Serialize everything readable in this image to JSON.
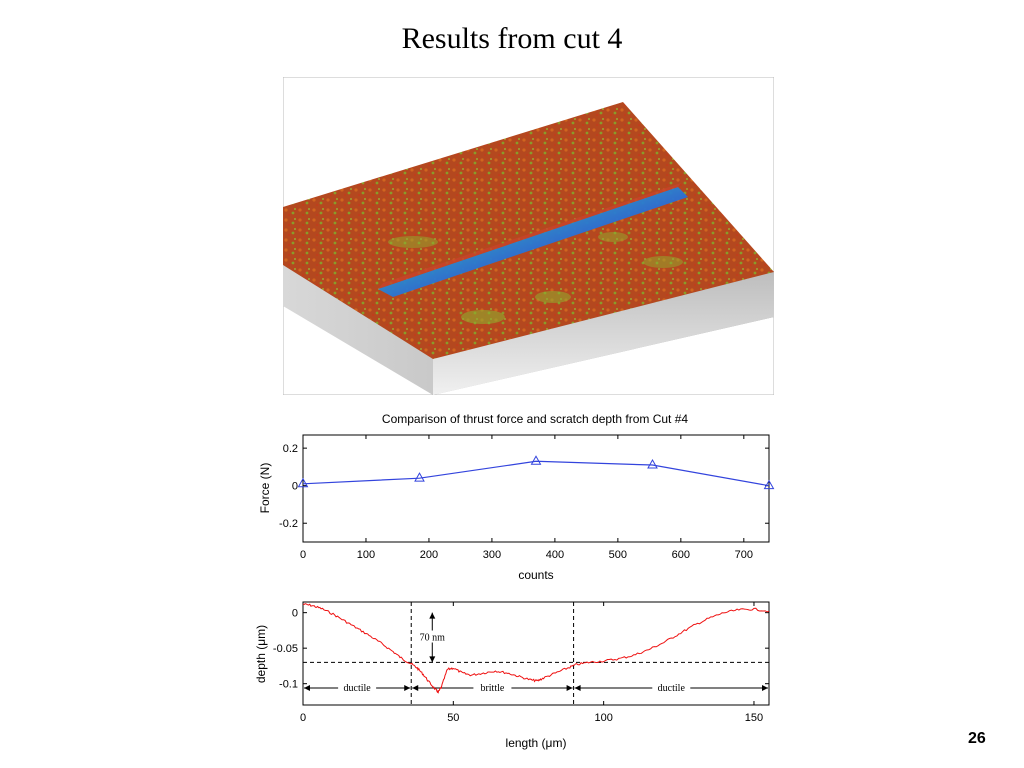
{
  "slide": {
    "title": "Results from cut 4",
    "page_number": "26"
  },
  "colors": {
    "force_line": "#3344dd",
    "depth_line": "#ee1111",
    "surface_top": "#b34a1e",
    "surface_groove": "#2f7fd9",
    "surface_speckle": "#8fae2d"
  },
  "chart_data": [
    {
      "type": "line",
      "title": "Comparison of thrust force and scratch depth from Cut #4",
      "xlabel": "counts",
      "ylabel": "Force (N)",
      "xlim": [
        0,
        740
      ],
      "ylim": [
        -0.3,
        0.27
      ],
      "xticks": [
        0,
        100,
        200,
        300,
        400,
        500,
        600,
        700
      ],
      "yticks": [
        0.2,
        0,
        -0.2
      ],
      "grid": false,
      "series": [
        {
          "marker": "triangle",
          "x": [
            0,
            185,
            370,
            555,
            740
          ],
          "y": [
            0.01,
            0.04,
            0.13,
            0.11,
            0.0
          ]
        }
      ]
    },
    {
      "type": "line",
      "title": "",
      "xlabel": "length (μm)",
      "ylabel": "depth (μm)",
      "xlim": [
        0,
        155
      ],
      "ylim": [
        -0.13,
        0.015
      ],
      "xticks": [
        0,
        50,
        100,
        150
      ],
      "yticks": [
        0,
        -0.05,
        -0.1
      ],
      "grid": false,
      "series": [
        {
          "x": [
            0,
            3,
            6,
            10,
            14,
            18,
            22,
            26,
            30,
            33,
            36,
            38,
            40,
            42,
            44,
            45,
            46,
            48,
            50,
            53,
            56,
            60,
            64,
            68,
            72,
            76,
            78,
            80,
            84,
            88,
            91,
            95,
            100,
            105,
            110,
            115,
            120,
            125,
            130,
            135,
            140,
            145,
            150,
            155
          ],
          "y": [
            0.012,
            0.01,
            0.006,
            -0.002,
            -0.012,
            -0.022,
            -0.032,
            -0.043,
            -0.055,
            -0.065,
            -0.072,
            -0.078,
            -0.087,
            -0.098,
            -0.108,
            -0.112,
            -0.105,
            -0.08,
            -0.078,
            -0.085,
            -0.088,
            -0.085,
            -0.082,
            -0.085,
            -0.09,
            -0.095,
            -0.096,
            -0.092,
            -0.085,
            -0.078,
            -0.073,
            -0.07,
            -0.068,
            -0.065,
            -0.06,
            -0.052,
            -0.042,
            -0.03,
            -0.018,
            -0.008,
            0.0,
            0.004,
            0.005,
            0.002
          ]
        }
      ],
      "reference_line_y": -0.07,
      "region_boundaries_x": [
        36,
        90
      ],
      "regions": [
        {
          "label": "ductile",
          "from": 0,
          "to": 36
        },
        {
          "label": "brittle",
          "from": 36,
          "to": 90
        },
        {
          "label": "ductile",
          "from": 90,
          "to": 155
        }
      ],
      "annotation": {
        "label": "70 nm",
        "x": 43,
        "from": 0,
        "to": -0.07
      }
    }
  ]
}
